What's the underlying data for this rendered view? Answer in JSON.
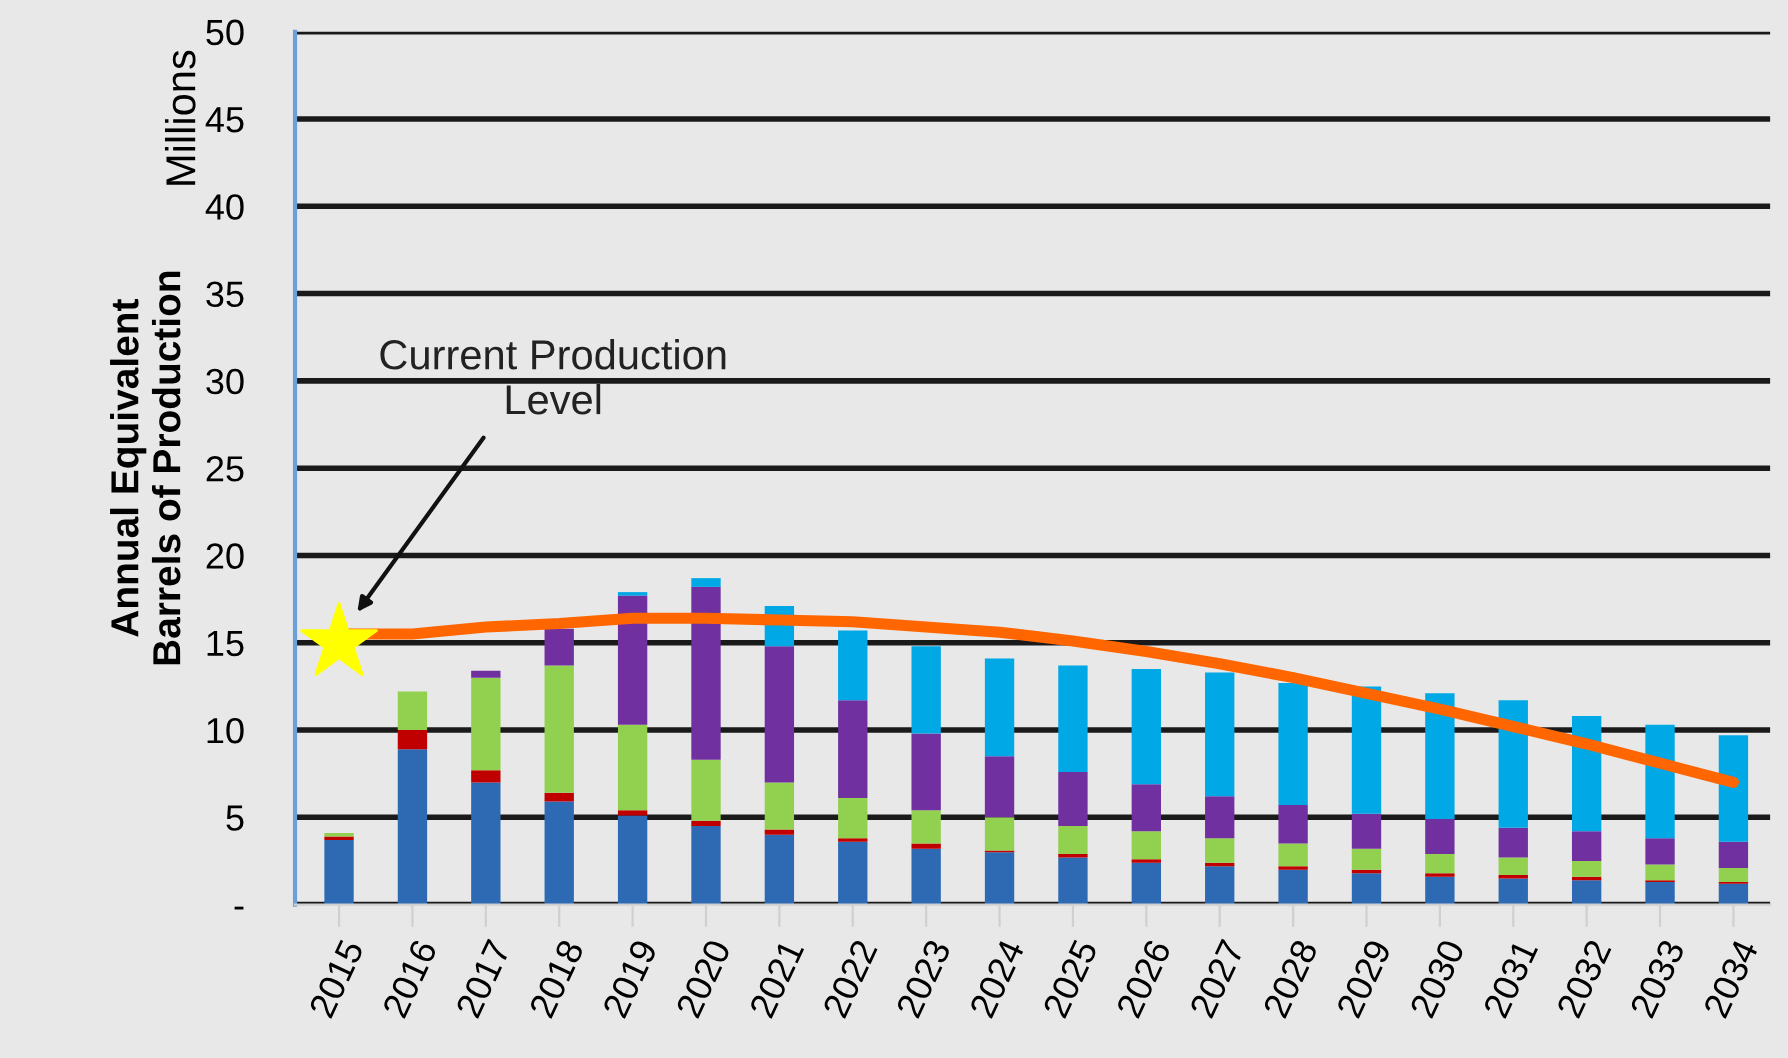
{
  "chart_data": {
    "type": "bar",
    "stacked": true,
    "ylabel": "Annual Equivalent\nBarrels of Production",
    "categories": [
      "2015",
      "2016",
      "2017",
      "2018",
      "2019",
      "2020",
      "2021",
      "2022",
      "2023",
      "2024",
      "2025",
      "2026",
      "2027",
      "2028",
      "2029",
      "2030",
      "2031",
      "2032",
      "2033",
      "2034"
    ],
    "series": [
      {
        "color": "#2e6ab4",
        "values": [
          3.7,
          8.9,
          7.0,
          5.9,
          5.1,
          4.5,
          4.0,
          3.6,
          3.2,
          3.0,
          2.7,
          2.4,
          2.2,
          2.0,
          1.8,
          1.6,
          1.5,
          1.4,
          1.3,
          1.2
        ]
      },
      {
        "color": "#c00000",
        "values": [
          0.2,
          1.1,
          0.7,
          0.5,
          0.3,
          0.3,
          0.3,
          0.2,
          0.3,
          0.1,
          0.2,
          0.2,
          0.2,
          0.2,
          0.2,
          0.2,
          0.2,
          0.2,
          0.1,
          0.1
        ]
      },
      {
        "color": "#92d050",
        "values": [
          0.2,
          2.2,
          5.3,
          7.3,
          4.9,
          3.5,
          2.7,
          2.3,
          1.9,
          1.9,
          1.6,
          1.6,
          1.4,
          1.3,
          1.2,
          1.1,
          1.0,
          0.9,
          0.9,
          0.8
        ]
      },
      {
        "color": "#7030a0",
        "values": [
          0,
          0,
          0.4,
          2.1,
          7.4,
          9.9,
          7.8,
          5.6,
          4.4,
          3.5,
          3.1,
          2.7,
          2.4,
          2.2,
          2.0,
          2.0,
          1.7,
          1.7,
          1.5,
          1.5
        ]
      },
      {
        "color": "#00a8e6",
        "values": [
          0,
          0,
          0,
          0,
          0.2,
          0.5,
          2.3,
          4.0,
          5.0,
          5.6,
          6.1,
          6.6,
          7.1,
          7.0,
          7.3,
          7.2,
          7.3,
          6.6,
          6.5,
          6.1
        ]
      },
      {
        "type": "line",
        "color": "#ff6600",
        "marker": "none",
        "values": [
          15.5,
          15.5,
          15.9,
          16.1,
          16.4,
          16.4,
          16.3,
          16.2,
          15.9,
          15.6,
          15.1,
          14.5,
          13.8,
          13.0,
          12.1,
          11.2,
          10.2,
          9.2,
          8.1,
          7.0
        ]
      },
      {
        "type": "scatter",
        "color": "#ffff00",
        "marker": "star",
        "values": [
          15,
          null,
          null,
          null,
          null,
          null,
          null,
          null,
          null,
          null,
          null,
          null,
          null,
          null,
          null,
          null,
          null,
          null,
          null,
          null
        ]
      }
    ],
    "ylim": [
      0,
      50
    ],
    "yticks": [
      {
        "value": 0,
        "label": "-"
      },
      5,
      10,
      15,
      20,
      25,
      30,
      35,
      40,
      45,
      50
    ],
    "grid": "y",
    "legend": false,
    "annotations": [
      "Current Production\nLevel",
      "Millions"
    ]
  }
}
